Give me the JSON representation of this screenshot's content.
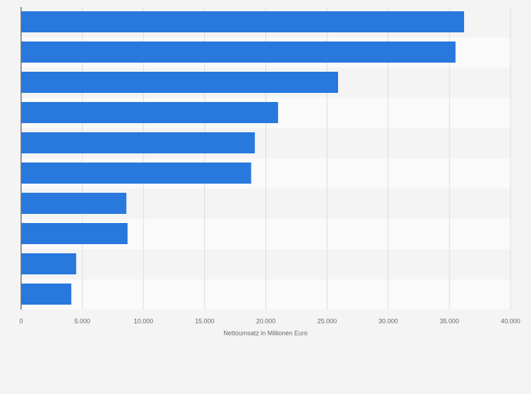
{
  "chart_data": {
    "type": "hbar",
    "categories": [
      null,
      null,
      null,
      null,
      null,
      null,
      null,
      null,
      null,
      null
    ],
    "values": [
      36200,
      35500,
      25900,
      21000,
      19100,
      18800,
      8600,
      8700,
      4500,
      4100
    ],
    "color": "#2878dd",
    "xlabel": "Nettoumsatz in Millionen Euro",
    "xlim": [
      0,
      40000
    ],
    "xticks": [
      0,
      {
        "value": 5000,
        "label": "5.000"
      },
      {
        "value": 10000,
        "label": "10.000"
      },
      {
        "value": 15000,
        "label": "15.000"
      },
      {
        "value": 20000,
        "label": "20.000"
      },
      {
        "value": 25000,
        "label": "25.000"
      },
      {
        "value": 30000,
        "label": "30.000"
      },
      {
        "value": 35000,
        "label": "35.000"
      },
      {
        "value": 40000,
        "label": "40.000"
      }
    ],
    "grid": true
  }
}
